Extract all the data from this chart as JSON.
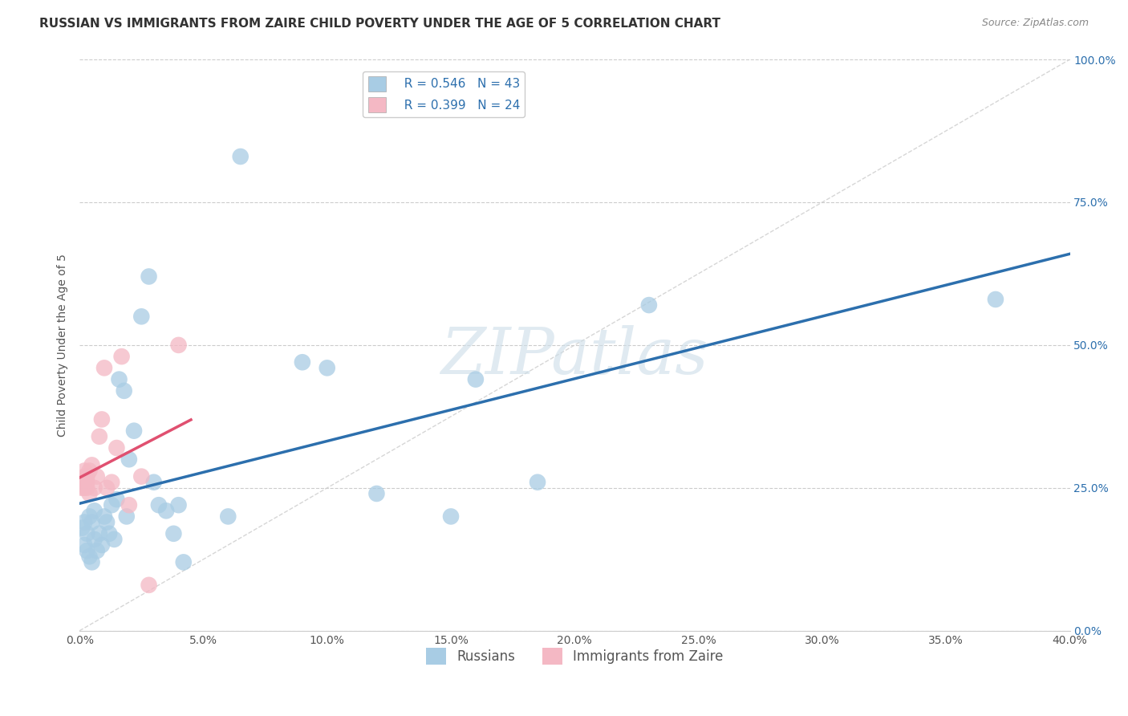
{
  "title": "RUSSIAN VS IMMIGRANTS FROM ZAIRE CHILD POVERTY UNDER THE AGE OF 5 CORRELATION CHART",
  "source": "Source: ZipAtlas.com",
  "ylabel": "Child Poverty Under the Age of 5",
  "legend_label1": "Russians",
  "legend_label2": "Immigrants from Zaire",
  "r1": 0.546,
  "n1": 43,
  "r2": 0.399,
  "n2": 24,
  "color1": "#a8cce4",
  "color2": "#f4b8c4",
  "line_color1": "#2c6fad",
  "line_color2": "#e05070",
  "ref_line_color": "#cccccc",
  "background": "#ffffff",
  "grid_color": "#cccccc",
  "xlim": [
    0.0,
    0.4
  ],
  "ylim": [
    0.0,
    1.0
  ],
  "xticks": [
    0.0,
    0.05,
    0.1,
    0.15,
    0.2,
    0.25,
    0.3,
    0.35,
    0.4
  ],
  "yticks": [
    0.0,
    0.25,
    0.5,
    0.75,
    1.0
  ],
  "russians_x": [
    0.001,
    0.002,
    0.002,
    0.003,
    0.003,
    0.004,
    0.004,
    0.005,
    0.005,
    0.006,
    0.006,
    0.007,
    0.008,
    0.009,
    0.01,
    0.011,
    0.012,
    0.013,
    0.014,
    0.015,
    0.016,
    0.018,
    0.019,
    0.02,
    0.022,
    0.025,
    0.028,
    0.03,
    0.032,
    0.035,
    0.038,
    0.04,
    0.042,
    0.06,
    0.065,
    0.09,
    0.1,
    0.12,
    0.15,
    0.16,
    0.185,
    0.23,
    0.37
  ],
  "russians_y": [
    0.18,
    0.19,
    0.15,
    0.14,
    0.17,
    0.2,
    0.13,
    0.12,
    0.19,
    0.16,
    0.21,
    0.14,
    0.17,
    0.15,
    0.2,
    0.19,
    0.17,
    0.22,
    0.16,
    0.23,
    0.44,
    0.42,
    0.2,
    0.3,
    0.35,
    0.55,
    0.62,
    0.26,
    0.22,
    0.21,
    0.17,
    0.22,
    0.12,
    0.2,
    0.83,
    0.47,
    0.46,
    0.24,
    0.2,
    0.44,
    0.26,
    0.57,
    0.58
  ],
  "zaire_x": [
    0.001,
    0.001,
    0.002,
    0.002,
    0.002,
    0.003,
    0.003,
    0.003,
    0.004,
    0.004,
    0.005,
    0.006,
    0.007,
    0.008,
    0.009,
    0.01,
    0.011,
    0.013,
    0.015,
    0.017,
    0.02,
    0.025,
    0.028,
    0.04
  ],
  "zaire_y": [
    0.26,
    0.25,
    0.27,
    0.28,
    0.25,
    0.26,
    0.27,
    0.25,
    0.28,
    0.24,
    0.29,
    0.25,
    0.27,
    0.34,
    0.37,
    0.46,
    0.25,
    0.26,
    0.32,
    0.48,
    0.22,
    0.27,
    0.08,
    0.5
  ],
  "title_fontsize": 11,
  "axis_label_fontsize": 10,
  "tick_fontsize": 10,
  "legend_fontsize": 11,
  "source_fontsize": 9,
  "watermark": "ZIPatlas",
  "watermark_color": "#ccdde8"
}
